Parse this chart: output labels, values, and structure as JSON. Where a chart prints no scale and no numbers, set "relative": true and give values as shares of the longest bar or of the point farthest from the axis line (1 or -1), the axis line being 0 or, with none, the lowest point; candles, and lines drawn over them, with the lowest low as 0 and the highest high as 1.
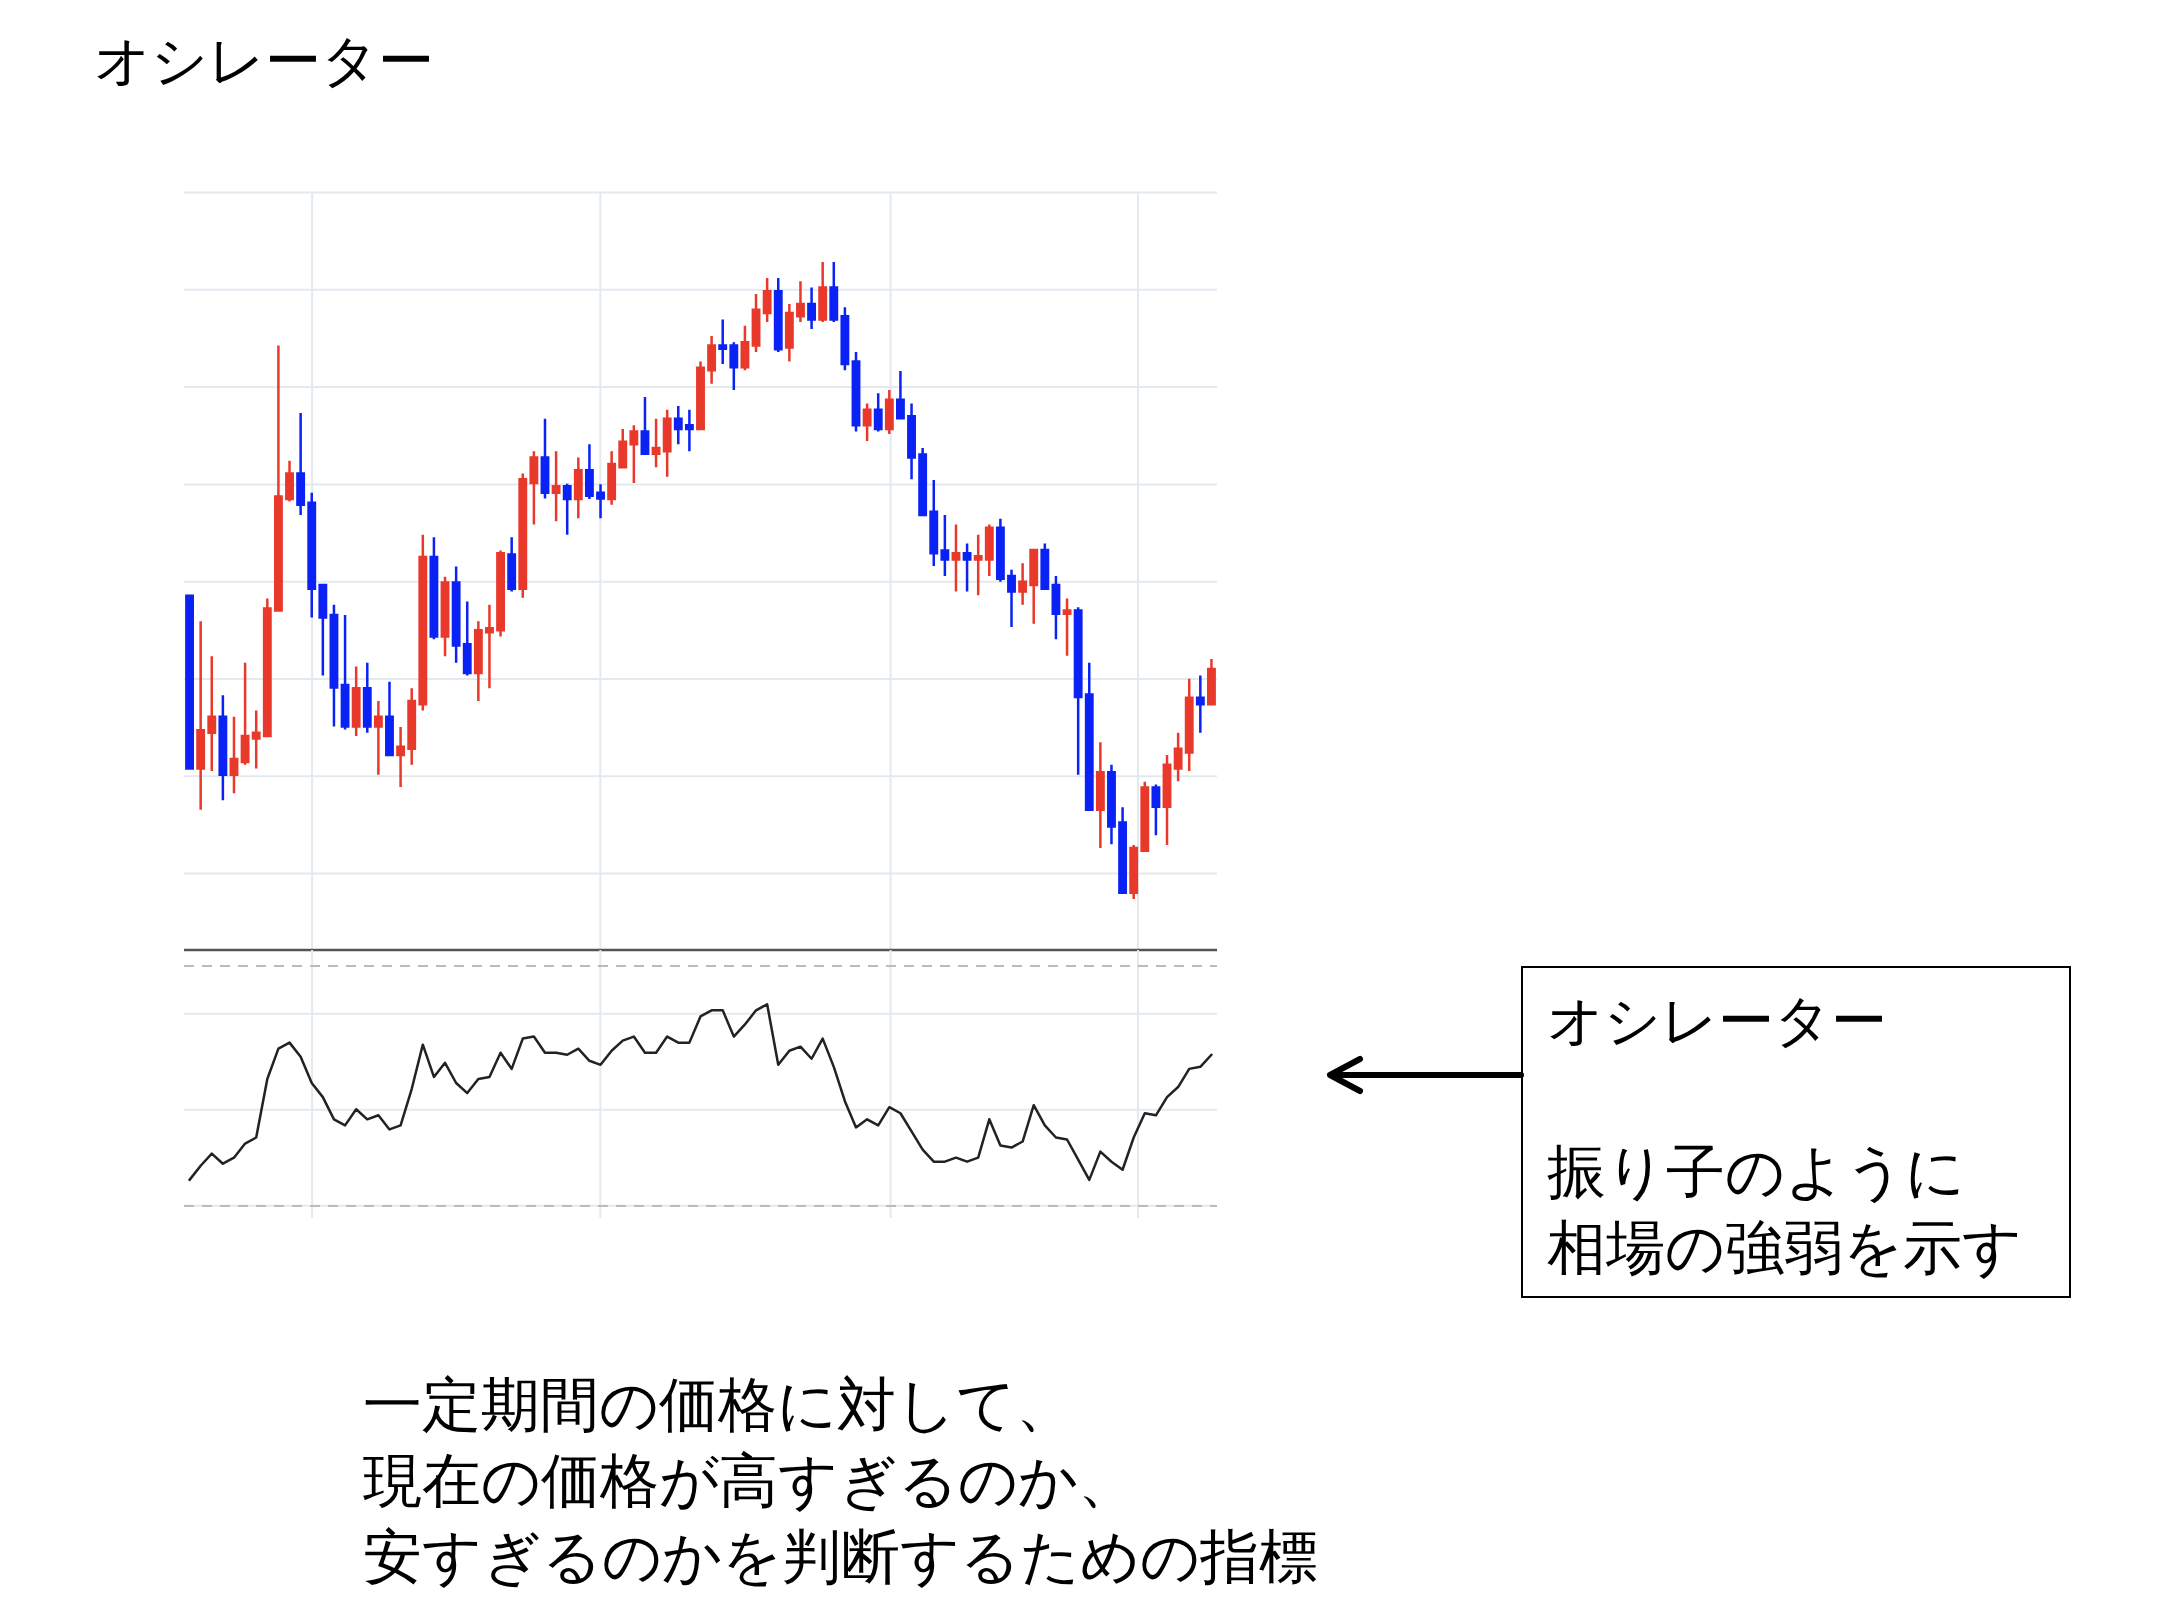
{
  "chart_data": [
    {
      "type": "candlestick",
      "title": "オシレーター",
      "relative": true,
      "grid": true,
      "categories": [
        null,
        null,
        null,
        null,
        null,
        null,
        null,
        null,
        null,
        null,
        null,
        null,
        null,
        null,
        null,
        null,
        null,
        null,
        null,
        null,
        null,
        null,
        null,
        null,
        null,
        null,
        null,
        null,
        null,
        null,
        null,
        null,
        null,
        null,
        null,
        null,
        null,
        null,
        null,
        null,
        null,
        null,
        null,
        null,
        null,
        null,
        null,
        null,
        null,
        null,
        null,
        null,
        null,
        null,
        null,
        null,
        null,
        null,
        null,
        null,
        null,
        null,
        null,
        null,
        null,
        null,
        null,
        null,
        null,
        null,
        null,
        null,
        null,
        null,
        null,
        null,
        null,
        null,
        null,
        null,
        null,
        null,
        null,
        null,
        null,
        null,
        null,
        null,
        null,
        null,
        null,
        null,
        null
      ],
      "ohlc": [
        [
          0.476,
          0.476,
          0.205,
          0.205
        ],
        [
          0.205,
          0.436,
          0.14,
          0.265
        ],
        [
          0.261,
          0.381,
          0.201,
          0.286
        ],
        [
          0.286,
          0.32,
          0.155,
          0.195
        ],
        [
          0.195,
          0.286,
          0.166,
          0.22
        ],
        [
          0.215,
          0.371,
          0.211,
          0.256
        ],
        [
          0.252,
          0.296,
          0.205,
          0.261
        ],
        [
          0.256,
          0.472,
          0.256,
          0.456
        ],
        [
          0.453,
          0.869,
          0.453,
          0.632
        ],
        [
          0.628,
          0.688,
          0.624,
          0.668
        ],
        [
          0.668,
          0.763,
          0.603,
          0.619
        ],
        [
          0.622,
          0.638,
          0.442,
          0.487
        ],
        [
          0.493,
          0.493,
          0.351,
          0.442
        ],
        [
          0.446,
          0.462,
          0.271,
          0.332
        ],
        [
          0.336,
          0.446,
          0.266,
          0.271
        ],
        [
          0.271,
          0.365,
          0.256,
          0.331
        ],
        [
          0.331,
          0.371,
          0.261,
          0.271
        ],
        [
          0.271,
          0.311,
          0.195,
          0.286
        ],
        [
          0.286,
          0.341,
          0.226,
          0.226
        ],
        [
          0.226,
          0.27,
          0.176,
          0.239
        ],
        [
          0.236,
          0.331,
          0.211,
          0.311
        ],
        [
          0.306,
          0.572,
          0.296,
          0.537
        ],
        [
          0.537,
          0.568,
          0.408,
          0.412
        ],
        [
          0.412,
          0.506,
          0.381,
          0.497
        ],
        [
          0.497,
          0.522,
          0.371,
          0.398
        ],
        [
          0.4,
          0.467,
          0.351,
          0.355
        ],
        [
          0.355,
          0.436,
          0.311,
          0.422
        ],
        [
          0.419,
          0.462,
          0.331,
          0.425
        ],
        [
          0.422,
          0.547,
          0.412,
          0.543
        ],
        [
          0.541,
          0.568,
          0.483,
          0.487
        ],
        [
          0.487,
          0.668,
          0.473,
          0.659
        ],
        [
          0.653,
          0.703,
          0.588,
          0.693
        ],
        [
          0.693,
          0.754,
          0.629,
          0.638
        ],
        [
          0.638,
          0.703,
          0.593,
          0.648
        ],
        [
          0.648,
          0.652,
          0.572,
          0.628
        ],
        [
          0.628,
          0.693,
          0.598,
          0.673
        ],
        [
          0.673,
          0.714,
          0.628,
          0.633
        ],
        [
          0.638,
          0.651,
          0.598,
          0.629
        ],
        [
          0.628,
          0.703,
          0.619,
          0.683
        ],
        [
          0.678,
          0.738,
          0.678,
          0.718
        ],
        [
          0.714,
          0.744,
          0.653,
          0.734
        ],
        [
          0.734,
          0.788,
          0.699,
          0.699
        ],
        [
          0.699,
          0.754,
          0.678,
          0.708
        ],
        [
          0.703,
          0.768,
          0.663,
          0.754
        ],
        [
          0.754,
          0.774,
          0.714,
          0.738
        ],
        [
          0.744,
          0.768,
          0.703,
          0.738
        ],
        [
          0.738,
          0.844,
          0.738,
          0.834
        ],
        [
          0.83,
          0.884,
          0.809,
          0.869
        ],
        [
          0.869,
          0.91,
          0.84,
          0.864
        ],
        [
          0.869,
          0.874,
          0.799,
          0.835
        ],
        [
          0.835,
          0.9,
          0.83,
          0.874
        ],
        [
          0.869,
          0.95,
          0.859,
          0.925
        ],
        [
          0.92,
          0.975,
          0.906,
          0.954
        ],
        [
          0.954,
          0.975,
          0.859,
          0.863
        ],
        [
          0.866,
          0.934,
          0.844,
          0.92
        ],
        [
          0.915,
          0.97,
          0.906,
          0.934
        ],
        [
          0.934,
          0.96,
          0.895,
          0.91
        ],
        [
          0.91,
          1.0,
          0.906,
          0.96
        ],
        [
          0.96,
          1.0,
          0.906,
          0.91
        ],
        [
          0.915,
          0.929,
          0.83,
          0.84
        ],
        [
          0.844,
          0.859,
          0.734,
          0.744
        ],
        [
          0.744,
          0.778,
          0.719,
          0.768
        ],
        [
          0.768,
          0.794,
          0.734,
          0.738
        ],
        [
          0.738,
          0.799,
          0.73,
          0.784
        ],
        [
          0.784,
          0.829,
          0.755,
          0.755
        ],
        [
          0.758,
          0.778,
          0.659,
          0.693
        ],
        [
          0.698,
          0.708,
          0.603,
          0.603
        ],
        [
          0.608,
          0.658,
          0.523,
          0.543
        ],
        [
          0.547,
          0.603,
          0.507,
          0.533
        ],
        [
          0.533,
          0.588,
          0.483,
          0.543
        ],
        [
          0.543,
          0.558,
          0.483,
          0.533
        ],
        [
          0.533,
          0.572,
          0.477,
          0.538
        ],
        [
          0.533,
          0.588,
          0.507,
          0.583
        ],
        [
          0.583,
          0.597,
          0.498,
          0.503
        ],
        [
          0.507,
          0.517,
          0.427,
          0.483
        ],
        [
          0.483,
          0.527,
          0.462,
          0.498
        ],
        [
          0.493,
          0.548,
          0.432,
          0.548
        ],
        [
          0.548,
          0.558,
          0.487,
          0.487
        ],
        [
          0.493,
          0.507,
          0.408,
          0.448
        ],
        [
          0.448,
          0.472,
          0.382,
          0.453
        ],
        [
          0.453,
          0.458,
          0.195,
          0.317
        ],
        [
          0.321,
          0.371,
          0.14,
          0.14
        ],
        [
          0.14,
          0.246,
          0.08,
          0.199
        ],
        [
          0.199,
          0.211,
          0.086,
          0.114
        ],
        [
          0.12,
          0.144,
          0.01,
          0.01
        ],
        [
          0.01,
          0.085,
          0.0,
          0.08
        ],
        [
          0.076,
          0.184,
          0.076,
          0.175
        ],
        [
          0.175,
          0.18,
          0.1,
          0.145
        ],
        [
          0.145,
          0.226,
          0.085,
          0.211
        ],
        [
          0.205,
          0.261,
          0.185,
          0.236
        ],
        [
          0.23,
          0.346,
          0.201,
          0.316
        ],
        [
          0.316,
          0.351,
          0.261,
          0.306
        ],
        [
          0.306,
          0.377,
          0.306,
          0.361
        ]
      ],
      "colors": [
        "#0b22f5",
        "#e8392b",
        "#e8392b",
        "#0b22f5",
        "#e8392b",
        "#e8392b",
        "#e8392b",
        "#e8392b",
        "#e8392b",
        "#e8392b",
        "#0b22f5",
        "#0b22f5",
        "#0b22f5",
        "#0b22f5",
        "#0b22f5",
        "#e8392b",
        "#0b22f5",
        "#e8392b",
        "#0b22f5",
        "#e8392b",
        "#e8392b",
        "#e8392b",
        "#0b22f5",
        "#e8392b",
        "#0b22f5",
        "#0b22f5",
        "#e8392b",
        "#e8392b",
        "#e8392b",
        "#0b22f5",
        "#e8392b",
        "#e8392b",
        "#0b22f5",
        "#e8392b",
        "#0b22f5",
        "#e8392b",
        "#0b22f5",
        "#0b22f5",
        "#e8392b",
        "#e8392b",
        "#e8392b",
        "#0b22f5",
        "#e8392b",
        "#e8392b",
        "#0b22f5",
        "#0b22f5",
        "#e8392b",
        "#e8392b",
        "#0b22f5",
        "#0b22f5",
        "#e8392b",
        "#e8392b",
        "#e8392b",
        "#0b22f5",
        "#e8392b",
        "#e8392b",
        "#0b22f5",
        "#e8392b",
        "#0b22f5",
        "#0b22f5",
        "#0b22f5",
        "#e8392b",
        "#0b22f5",
        "#e8392b",
        "#0b22f5",
        "#0b22f5",
        "#0b22f5",
        "#0b22f5",
        "#0b22f5",
        "#e8392b",
        "#0b22f5",
        "#e8392b",
        "#e8392b",
        "#0b22f5",
        "#0b22f5",
        "#e8392b",
        "#e8392b",
        "#0b22f5",
        "#0b22f5",
        "#e8392b",
        "#0b22f5",
        "#0b22f5",
        "#e8392b",
        "#0b22f5",
        "#0b22f5",
        "#e8392b",
        "#e8392b",
        "#0b22f5",
        "#e8392b",
        "#e8392b",
        "#e8392b",
        "#0b22f5",
        "#e8392b"
      ]
    },
    {
      "type": "line",
      "relative": true,
      "grid": true,
      "color": "#222222",
      "categories": [
        null,
        null,
        null,
        null,
        null,
        null,
        null,
        null,
        null,
        null,
        null,
        null,
        null,
        null,
        null,
        null,
        null,
        null,
        null,
        null,
        null,
        null,
        null,
        null,
        null,
        null,
        null,
        null,
        null,
        null,
        null,
        null,
        null,
        null,
        null,
        null,
        null,
        null,
        null,
        null,
        null,
        null,
        null,
        null,
        null,
        null,
        null,
        null,
        null,
        null,
        null,
        null,
        null,
        null,
        null,
        null,
        null,
        null,
        null,
        null,
        null,
        null,
        null,
        null,
        null,
        null,
        null,
        null,
        null,
        null,
        null,
        null,
        null,
        null,
        null,
        null,
        null,
        null,
        null,
        null,
        null,
        null,
        null,
        null,
        null,
        null,
        null,
        null,
        null,
        null,
        null,
        null,
        null
      ],
      "values": [
        0.13,
        0.2,
        0.26,
        0.21,
        0.24,
        0.31,
        0.34,
        0.63,
        0.78,
        0.81,
        0.74,
        0.61,
        0.54,
        0.43,
        0.4,
        0.48,
        0.43,
        0.45,
        0.38,
        0.4,
        0.58,
        0.8,
        0.64,
        0.71,
        0.61,
        0.56,
        0.63,
        0.64,
        0.76,
        0.68,
        0.83,
        0.84,
        0.76,
        0.76,
        0.75,
        0.78,
        0.72,
        0.7,
        0.77,
        0.82,
        0.84,
        0.76,
        0.76,
        0.84,
        0.81,
        0.81,
        0.94,
        0.97,
        0.97,
        0.84,
        0.9,
        0.97,
        1.0,
        0.7,
        0.77,
        0.79,
        0.73,
        0.83,
        0.69,
        0.52,
        0.39,
        0.43,
        0.4,
        0.49,
        0.46,
        0.37,
        0.28,
        0.22,
        0.22,
        0.24,
        0.22,
        0.24,
        0.43,
        0.3,
        0.29,
        0.32,
        0.5,
        0.4,
        0.34,
        0.33,
        0.23,
        0.13,
        0.27,
        0.22,
        0.18,
        0.34,
        0.46,
        0.45,
        0.54,
        0.59,
        0.68,
        0.69,
        0.75
      ],
      "ref_lines": [
        {
          "axis": "y",
          "value": 1.19,
          "color": "#bbbbbb",
          "line_style": "dashed"
        },
        {
          "axis": "y",
          "value": 0,
          "color": "#bbbbbb",
          "line_style": "dashed"
        }
      ],
      "annotations": [
        "オシレーター",
        "振り子のように",
        "相場の強弱を示す",
        "一定期間の価格に対して、現在の価格が高すぎるのか、安すぎるのかを判断するための指標"
      ]
    }
  ]
}
